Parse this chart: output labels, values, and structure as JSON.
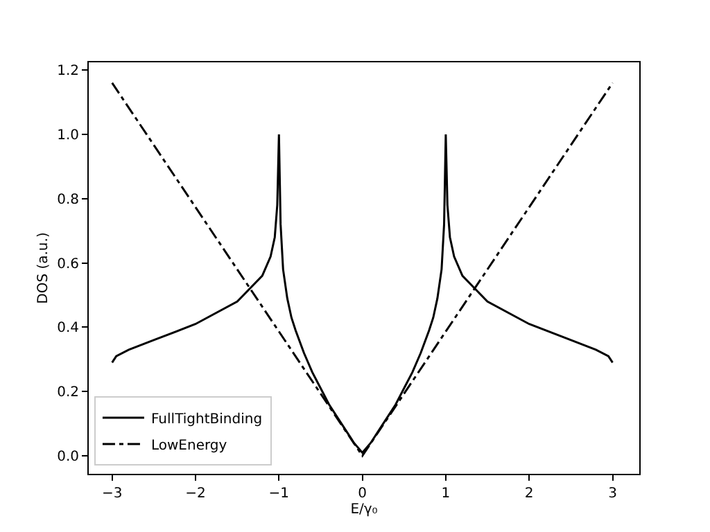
{
  "chart_data": {
    "type": "line",
    "xlabel": "E/γ₀",
    "ylabel": "DOS (a.u.)",
    "series": [
      {
        "name": "FullTightBinding",
        "color": "#000000",
        "line_style": "solid",
        "x": [
          -3,
          -2.95,
          -2.8,
          -2.5,
          -2,
          -1.5,
          -1.35,
          -1.2,
          -1.1,
          -1.05,
          -1.02,
          -1,
          -0.98,
          -0.95,
          -0.9,
          -0.85,
          -0.8,
          -0.7,
          -0.6,
          -0.5,
          -0.4,
          -0.3,
          -0.2,
          -0.1,
          0,
          0.1,
          0.2,
          0.3,
          0.4,
          0.5,
          0.6,
          0.7,
          0.8,
          0.85,
          0.9,
          0.95,
          0.98,
          1,
          1.02,
          1.05,
          1.1,
          1.2,
          1.35,
          1.5,
          2,
          2.5,
          2.8,
          2.95,
          3
        ],
        "values": [
          0.29,
          0.31,
          0.33,
          0.36,
          0.41,
          0.48,
          0.52,
          0.56,
          0.62,
          0.68,
          0.78,
          1.0,
          0.72,
          0.58,
          0.49,
          0.43,
          0.39,
          0.32,
          0.26,
          0.21,
          0.16,
          0.12,
          0.08,
          0.04,
          0.01,
          0.04,
          0.08,
          0.12,
          0.16,
          0.21,
          0.26,
          0.32,
          0.39,
          0.43,
          0.49,
          0.58,
          0.72,
          1.0,
          0.78,
          0.68,
          0.62,
          0.56,
          0.52,
          0.48,
          0.41,
          0.36,
          0.33,
          0.31,
          0.29
        ]
      },
      {
        "name": "LowEnergy",
        "color": "#000000",
        "line_style": "dashdot",
        "x": [
          -3,
          0,
          3
        ],
        "values": [
          1.16,
          0.0,
          1.16
        ]
      }
    ],
    "xlim": [
      -3.28,
      3.32
    ],
    "ylim": [
      -0.056,
      1.224
    ],
    "xticks": [
      {
        "value": -3,
        "label": "−3"
      },
      {
        "value": -2,
        "label": "−2"
      },
      {
        "value": -1,
        "label": "−1"
      },
      0,
      1,
      2,
      3
    ],
    "yticks": [
      {
        "value": 0,
        "label": "0.0"
      },
      0.2,
      0.4,
      0.6,
      0.8,
      {
        "value": 1,
        "label": "1.0"
      },
      1.2
    ],
    "legend": "bottom left"
  }
}
